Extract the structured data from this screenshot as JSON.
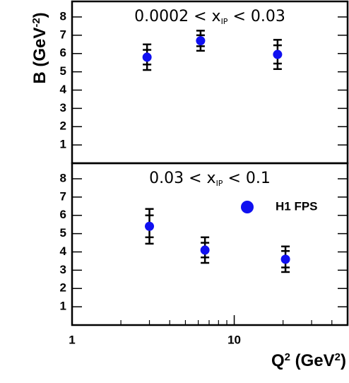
{
  "chart_data": [
    {
      "type": "scatter",
      "annotation": [
        "0.0002 < x",
        "IP",
        " < 0.03"
      ],
      "y_label": [
        "B (GeV",
        "-2",
        ")"
      ],
      "log_x": true,
      "xlim": [
        1,
        50
      ],
      "ylim": [
        0,
        8.85
      ],
      "yticks": [
        1,
        2,
        3,
        4,
        5,
        6,
        7,
        8
      ],
      "series": [
        {
          "color": "#1010f0",
          "x": [
            2.9,
            6.2,
            18.5
          ],
          "values": [
            5.8,
            6.7,
            5.95
          ],
          "stat_errors": [
            0.4,
            0.3,
            0.5
          ],
          "total_errors": [
            0.7,
            0.55,
            0.8
          ]
        }
      ]
    },
    {
      "type": "scatter",
      "annotation": [
        "0.03 < x",
        "IP",
        " < 0.1"
      ],
      "x_label": [
        "Q",
        "2",
        " (GeV",
        "2",
        ")"
      ],
      "log_x": true,
      "xlim": [
        1,
        50
      ],
      "ylim": [
        0,
        8.85
      ],
      "yticks": [
        1,
        2,
        3,
        4,
        5,
        6,
        7,
        8
      ],
      "xticks": [
        1,
        10
      ],
      "xminorticks": [
        2,
        3,
        4,
        5,
        6,
        7,
        8,
        9,
        20,
        30,
        40
      ],
      "legend": "upper right",
      "series": [
        {
          "name": "H1 FPS",
          "color": "#1010f0",
          "x": [
            3.0,
            6.6,
            20.7
          ],
          "values": [
            5.4,
            4.1,
            3.6
          ],
          "stat_errors": [
            0.6,
            0.4,
            0.45
          ],
          "total_errors": [
            0.95,
            0.7,
            0.7
          ]
        }
      ]
    }
  ]
}
